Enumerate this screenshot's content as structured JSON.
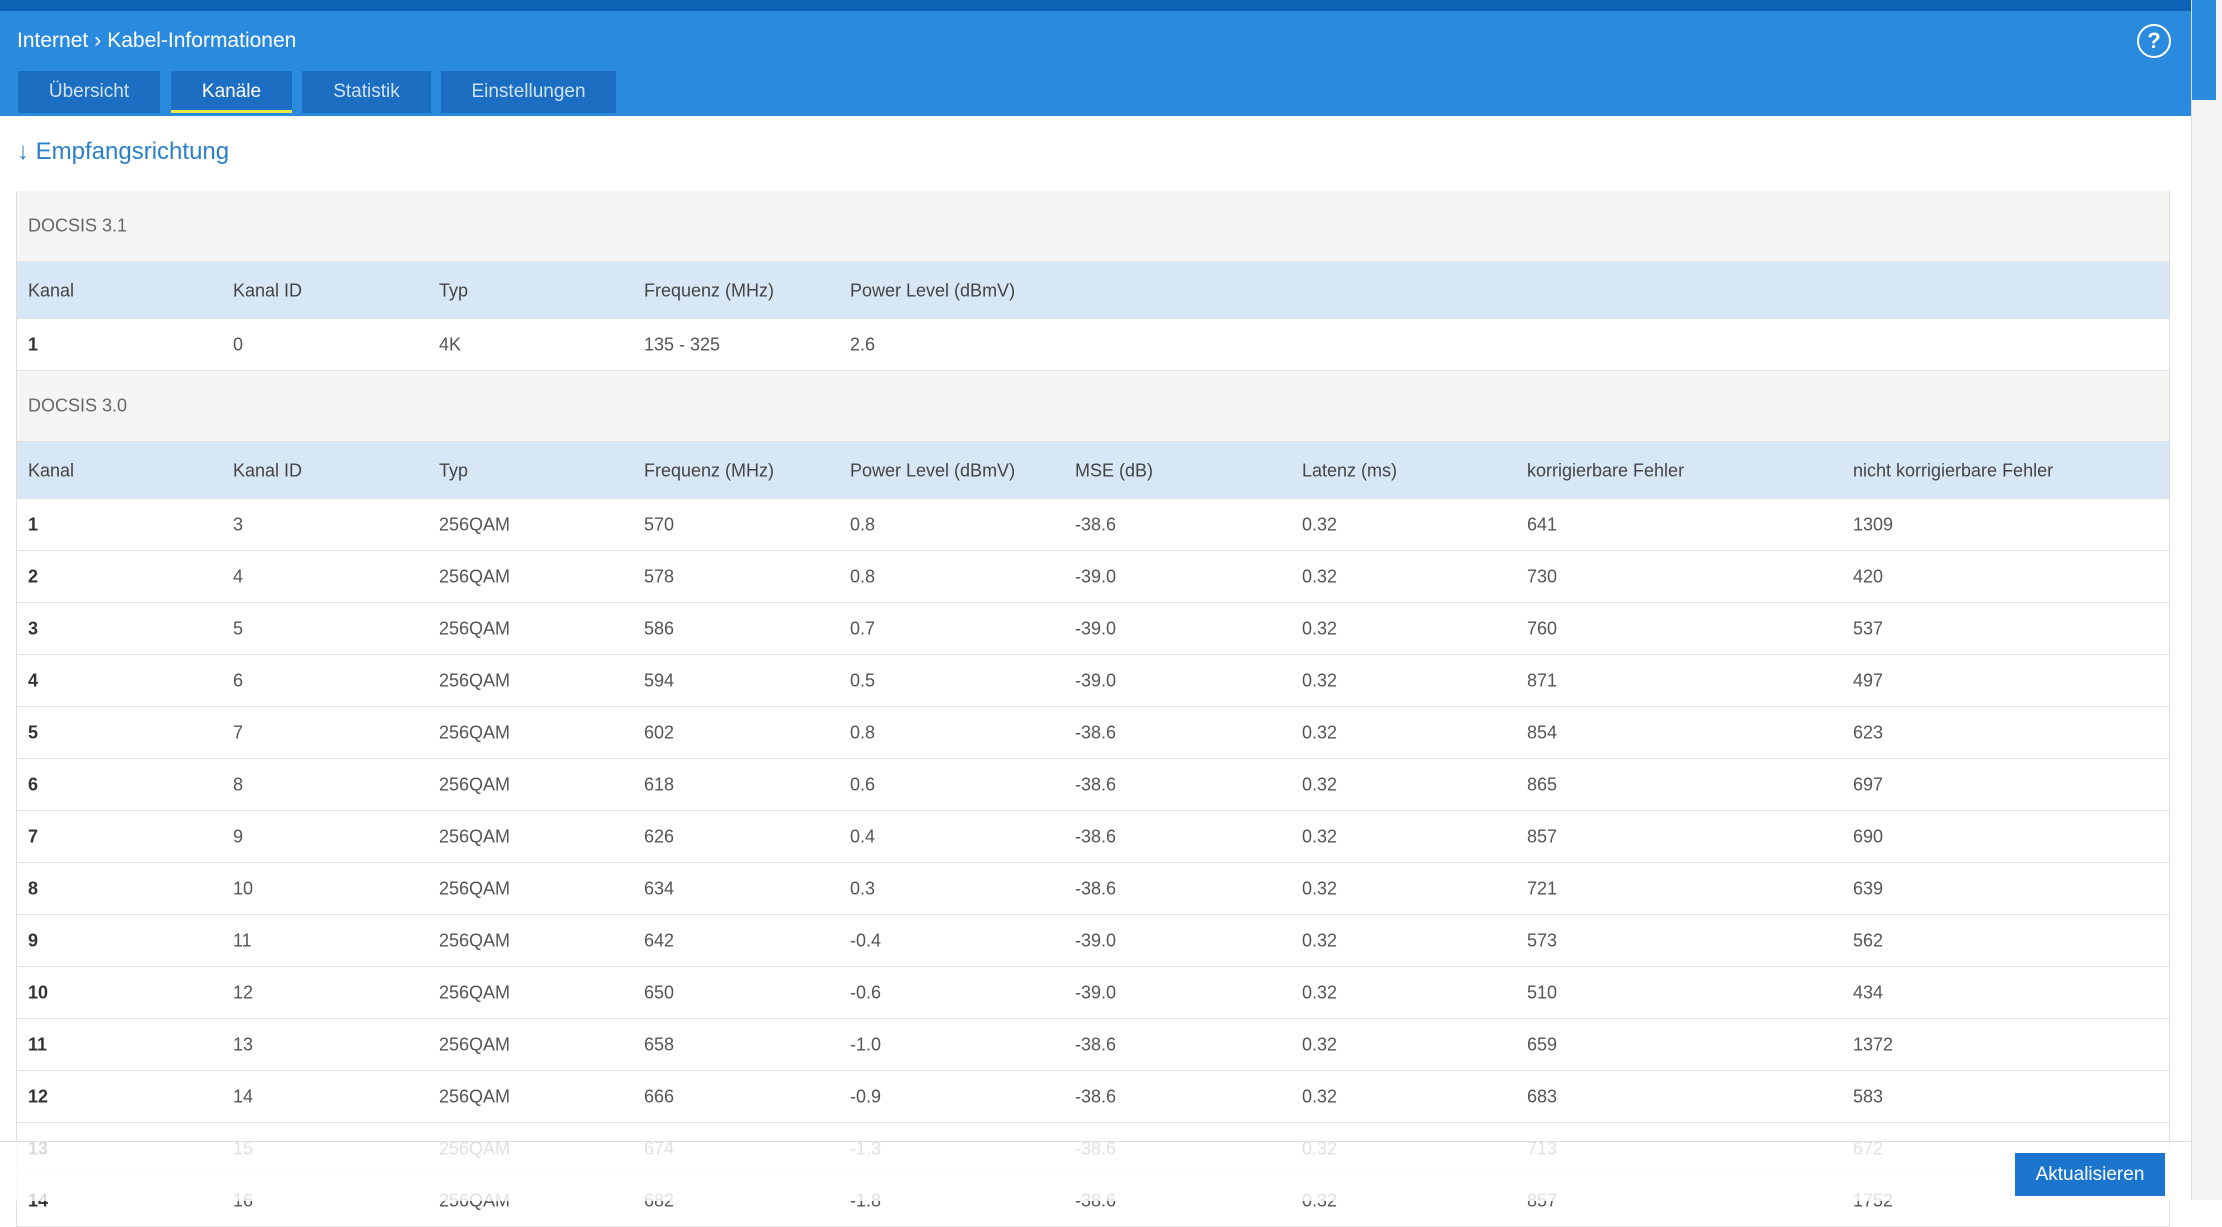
{
  "header": {
    "breadcrumb": [
      "Internet",
      "Kabel-Informationen"
    ],
    "help": "?",
    "tabs": [
      "Übersicht",
      "Kanäle",
      "Statistik",
      "Einstellungen"
    ]
  },
  "section_title": "↓ Empfangsrichtung",
  "docsis31": {
    "title": "DOCSIS 3.1",
    "columns": [
      "Kanal",
      "Kanal ID",
      "Typ",
      "Frequenz (MHz)",
      "Power Level (dBmV)"
    ],
    "rows": [
      [
        "1",
        "0",
        "4K",
        "135 - 325",
        "2.6"
      ]
    ]
  },
  "docsis30": {
    "title": "DOCSIS 3.0",
    "columns": [
      "Kanal",
      "Kanal ID",
      "Typ",
      "Frequenz (MHz)",
      "Power Level (dBmV)",
      "MSE (dB)",
      "Latenz (ms)",
      "korrigierbare Fehler",
      "nicht korrigierbare Fehler"
    ],
    "rows": [
      [
        "1",
        "3",
        "256QAM",
        "570",
        "0.8",
        "-38.6",
        "0.32",
        "641",
        "1309"
      ],
      [
        "2",
        "4",
        "256QAM",
        "578",
        "0.8",
        "-39.0",
        "0.32",
        "730",
        "420"
      ],
      [
        "3",
        "5",
        "256QAM",
        "586",
        "0.7",
        "-39.0",
        "0.32",
        "760",
        "537"
      ],
      [
        "4",
        "6",
        "256QAM",
        "594",
        "0.5",
        "-39.0",
        "0.32",
        "871",
        "497"
      ],
      [
        "5",
        "7",
        "256QAM",
        "602",
        "0.8",
        "-38.6",
        "0.32",
        "854",
        "623"
      ],
      [
        "6",
        "8",
        "256QAM",
        "618",
        "0.6",
        "-38.6",
        "0.32",
        "865",
        "697"
      ],
      [
        "7",
        "9",
        "256QAM",
        "626",
        "0.4",
        "-38.6",
        "0.32",
        "857",
        "690"
      ],
      [
        "8",
        "10",
        "256QAM",
        "634",
        "0.3",
        "-38.6",
        "0.32",
        "721",
        "639"
      ],
      [
        "9",
        "11",
        "256QAM",
        "642",
        "-0.4",
        "-39.0",
        "0.32",
        "573",
        "562"
      ],
      [
        "10",
        "12",
        "256QAM",
        "650",
        "-0.6",
        "-39.0",
        "0.32",
        "510",
        "434"
      ],
      [
        "11",
        "13",
        "256QAM",
        "658",
        "-1.0",
        "-38.6",
        "0.32",
        "659",
        "1372"
      ],
      [
        "12",
        "14",
        "256QAM",
        "666",
        "-0.9",
        "-38.6",
        "0.32",
        "683",
        "583"
      ],
      [
        "13",
        "15",
        "256QAM",
        "674",
        "-1.3",
        "-38.6",
        "0.32",
        "713",
        "672"
      ],
      [
        "14",
        "16",
        "256QAM",
        "682",
        "-1.8",
        "-38.6",
        "0.32",
        "857",
        "1752"
      ]
    ]
  },
  "footer": {
    "button": "Aktualisieren"
  }
}
